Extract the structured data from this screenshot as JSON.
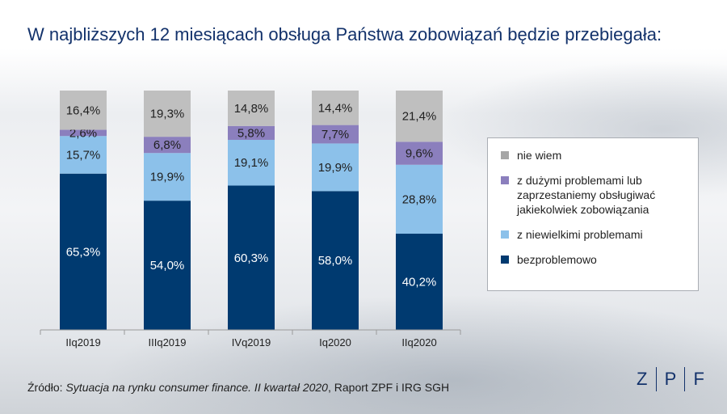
{
  "title": "W najbliższych 12 miesiącach obsługa Państwa zobowiązań będzie przebiegała:",
  "source": {
    "prefix": "Źródło: ",
    "italic": "Sytuacja na rynku consumer finance. II kwartał 2020",
    "suffix": ", Raport ZPF i IRG SGH"
  },
  "logo": {
    "letters": [
      "Z",
      "P",
      "F"
    ]
  },
  "chart_data": {
    "type": "bar",
    "stacked": true,
    "categories": [
      "IIq2019",
      "IIIq2019",
      "IVq2019",
      "Iq2020",
      "IIq2020"
    ],
    "ylim": [
      0,
      100
    ],
    "series": [
      {
        "name": "bezproblemowo",
        "color": "#003a70",
        "label_color": "#ffffff",
        "values": [
          65.3,
          54.0,
          60.3,
          58.0,
          40.2
        ],
        "labels": [
          "65,3%",
          "54,0%",
          "60,3%",
          "58,0%",
          "40,2%"
        ]
      },
      {
        "name": "z niewielkimi problemami",
        "color": "#8cc1ea",
        "label_color": "#1f1f1f",
        "values": [
          15.7,
          19.9,
          19.1,
          19.9,
          28.8
        ],
        "labels": [
          "15,7%",
          "19,9%",
          "19,1%",
          "19,9%",
          "28,8%"
        ]
      },
      {
        "name": "z dużymi problemami lub zaprzestaniemy obsługiwać jakiekolwiek zobowiązania",
        "color": "#8b7fbd",
        "label_color": "#1f1f1f",
        "values": [
          2.6,
          6.8,
          5.8,
          7.7,
          9.6
        ],
        "labels": [
          "2,6%",
          "6,8%",
          "5,8%",
          "7,7%",
          "9,6%"
        ]
      },
      {
        "name": "nie wiem",
        "color": "#bfbfbf",
        "label_color": "#1f1f1f",
        "values": [
          16.4,
          19.3,
          14.8,
          14.4,
          21.4
        ],
        "labels": [
          "16,4%",
          "19,3%",
          "14,8%",
          "14,4%",
          "21,4%"
        ]
      }
    ],
    "legend": {
      "position": "right",
      "items": [
        {
          "text": "nie wiem",
          "color": "#a6a6a6"
        },
        {
          "text": "z dużymi problemami lub\nzaprzestaniemy obsługiwać\njakiekolwiek zobowiązania",
          "color": "#8b7fbd"
        },
        {
          "text": "z niewielkimi problemami",
          "color": "#8cc1ea"
        },
        {
          "text": "bezproblemowo",
          "color": "#003a70"
        }
      ]
    }
  }
}
